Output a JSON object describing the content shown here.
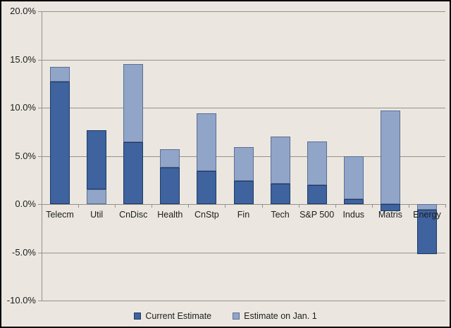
{
  "chart_data": {
    "type": "bar",
    "subtype": "paired-overlap-from-zero",
    "title": "",
    "xlabel": "",
    "ylabel": "",
    "categories": [
      "Telecm",
      "Util",
      "CnDisc",
      "Health",
      "CnStp",
      "Fin",
      "Tech",
      "S&P 500",
      "Indus",
      "Matris",
      "Energy"
    ],
    "series": [
      {
        "name": "Current Estimate",
        "fill": "#3E639E",
        "stroke": "#1E3A66",
        "values": [
          12.7,
          7.7,
          6.4,
          3.8,
          3.4,
          2.4,
          2.1,
          2.0,
          0.5,
          -0.7,
          -5.2
        ]
      },
      {
        "name": "Estimate on Jan. 1",
        "fill": "#91A5C9",
        "stroke": "#5C6E93",
        "values": [
          14.2,
          1.5,
          14.5,
          5.7,
          9.4,
          5.9,
          7.0,
          6.5,
          5.0,
          9.7,
          -0.6
        ]
      }
    ],
    "y_axis": {
      "min": -10,
      "max": 20,
      "step": 5,
      "tick_labels": [
        "20.0%",
        "15.0%",
        "10.0%",
        "5.0%",
        "0.0%",
        "-5.0%",
        "-10.0%"
      ]
    },
    "grid": true,
    "legend_position": "bottom-center",
    "render_rule": "both series bars start at zero; the bar with smaller absolute value is drawn in front of the other"
  },
  "colors": {
    "background": "#EBE7E0",
    "gridline": "#96918A",
    "text": "#1c1c1c",
    "frame_border": "#000000"
  }
}
